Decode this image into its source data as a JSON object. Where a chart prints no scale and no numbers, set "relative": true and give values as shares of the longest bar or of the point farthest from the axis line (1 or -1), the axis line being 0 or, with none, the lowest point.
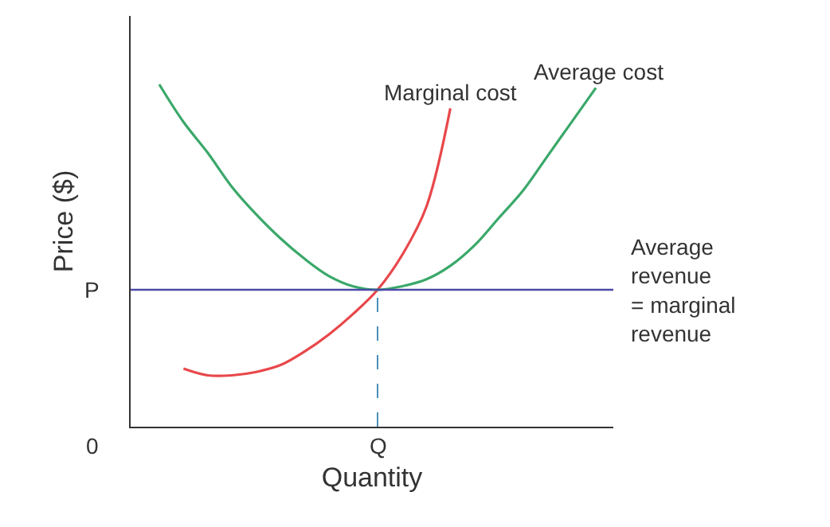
{
  "chart_data": {
    "type": "line",
    "relative": true,
    "xlabel": "Quantity",
    "ylabel": "Price ($)",
    "categories": [
      null,
      null,
      null,
      null,
      null,
      null,
      null,
      null,
      null,
      null,
      null,
      null,
      null,
      null,
      null,
      null,
      null,
      null,
      null
    ],
    "series": [
      {
        "name": "Marginal cost",
        "color": "#e8474a",
        "values": [
          null,
          0.17,
          0.15,
          0.15,
          0.16,
          0.18,
          0.22,
          0.27,
          0.33,
          0.4,
          0.5,
          0.64,
          0.93,
          null,
          null,
          null,
          null,
          null,
          null
        ]
      },
      {
        "name": "Average cost",
        "color": "#3aa86a",
        "values": [
          1,
          0.89,
          0.8,
          0.7,
          0.62,
          0.55,
          0.49,
          0.44,
          0.41,
          0.4,
          0.41,
          0.43,
          0.47,
          0.53,
          0.61,
          0.69,
          0.79,
          0.89,
          0.99
        ]
      }
    ],
    "ref_lines": [
      {
        "axis": "y",
        "value": 0.4,
        "label": "Average revenue = marginal revenue",
        "color": "#4a4aa8",
        "line_style": "solid"
      }
    ],
    "annotations": [
      "P",
      "0",
      "Q"
    ],
    "legend": false,
    "marker": "none",
    "line_style": "solid"
  }
}
